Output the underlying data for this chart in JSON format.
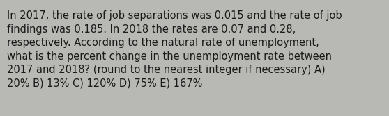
{
  "text": "In 2017, the rate of job separations was 0.015 and the rate of job findings was 0.185. In 2018 the rates are 0.07 and 0.28, respectively. According to the natural rate of unemployment, what is the percent change in the unemployment rate between 2017 and 2018? (round to the nearest integer if necessary) A) 20% B) 13% C) 120% D) 75% E) 167%",
  "background_color": "#b8b8b4",
  "text_color": "#1a1a1a",
  "font_size": 10.5,
  "font_family": "DejaVu Sans",
  "line1": "In 2017, the rate of job separations was 0.015 and the rate of job",
  "line2": "findings was 0.185. In 2018 the rates are 0.07 and 0.28,",
  "line3": "respectively. According to the natural rate of unemployment,",
  "line4": "what is the percent change in the unemployment rate between",
  "line5": "2017 and 2018? (round to the nearest integer if necessary) A)",
  "line6": "20% B) 13% C) 120% D) 75% E) 167%"
}
